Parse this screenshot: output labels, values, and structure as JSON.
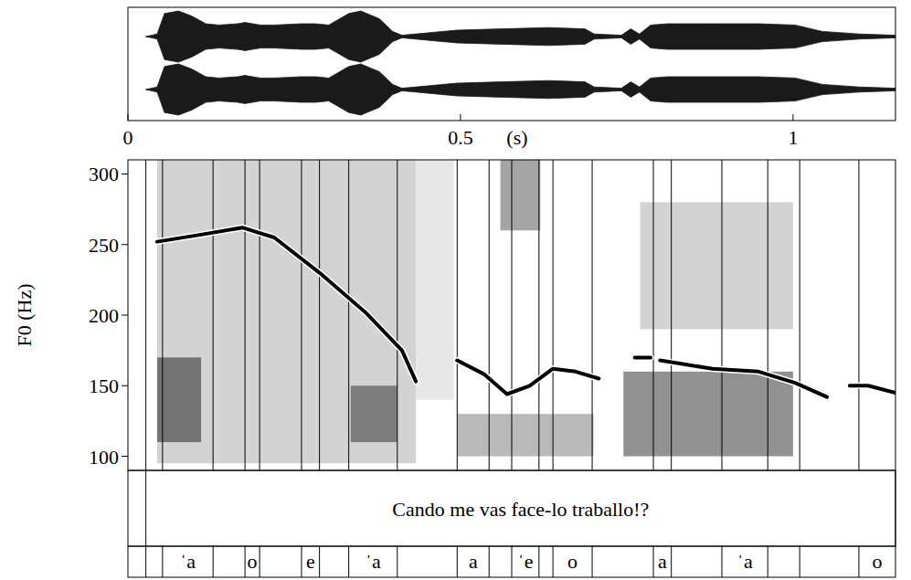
{
  "chart_data": {
    "type": "line",
    "xlabel": "(s)",
    "ylabel": "F0 (Hz)",
    "xlim": [
      0,
      1.154
    ],
    "xticks": [
      0,
      0.5,
      1
    ],
    "ylim": [
      90,
      310
    ],
    "yticks": [
      100,
      150,
      200,
      250,
      300
    ],
    "grid": false,
    "series": [
      {
        "color": "#000000",
        "x": [
          0.044,
          0.11,
          0.172,
          0.22,
          0.288,
          0.357,
          0.412,
          0.433,
          0.46,
          0.495,
          0.536,
          0.57,
          0.604,
          0.639,
          0.673,
          0.708,
          0.73,
          0.762,
          0.786,
          0.793,
          0.8,
          0.879,
          0.948,
          1.003,
          1.051,
          1.07,
          1.085,
          1.113,
          1.154
        ],
        "values": [
          252,
          257,
          262,
          255,
          230,
          202,
          175,
          153,
          null,
          168,
          158,
          144,
          150,
          162,
          160,
          155,
          null,
          170,
          170,
          null,
          168,
          162,
          160,
          152,
          142,
          null,
          150,
          150,
          145
        ]
      }
    ],
    "waveform": {
      "color": "#1a1a1a",
      "t": [
        0.027,
        0.044,
        0.055,
        0.076,
        0.096,
        0.117,
        0.137,
        0.165,
        0.176,
        0.199,
        0.22,
        0.261,
        0.282,
        0.302,
        0.332,
        0.35,
        0.378,
        0.398,
        0.412,
        0.495,
        0.563,
        0.632,
        0.687,
        0.701,
        0.742,
        0.756,
        0.769,
        0.786,
        0.811,
        0.879,
        0.948,
        1.003,
        1.044,
        1.099,
        1.154
      ],
      "amplitude": [
        0,
        0.1,
        0.9,
        1.0,
        0.8,
        0.5,
        0.45,
        0.5,
        0.55,
        0.45,
        0.45,
        0.5,
        0.5,
        0.45,
        0.9,
        1.0,
        0.7,
        0.2,
        0.05,
        0.25,
        0.3,
        0.35,
        0.3,
        0.1,
        0.05,
        0.3,
        0.1,
        0.45,
        0.5,
        0.5,
        0.5,
        0.45,
        0.2,
        0.1,
        0.05
      ]
    },
    "spectrogram": [
      {
        "start": 0.044,
        "end": 0.433,
        "low_hz": 95,
        "high_hz": 310,
        "level": 0.22
      },
      {
        "start": 0.433,
        "end": 0.49,
        "low_hz": 140,
        "high_hz": 310,
        "level": 0.12
      },
      {
        "start": 0.044,
        "end": 0.11,
        "low_hz": 110,
        "high_hz": 170,
        "level": 0.7
      },
      {
        "start": 0.335,
        "end": 0.405,
        "low_hz": 110,
        "high_hz": 150,
        "level": 0.65
      },
      {
        "start": 0.495,
        "end": 0.7,
        "low_hz": 100,
        "high_hz": 130,
        "level": 0.35
      },
      {
        "start": 0.56,
        "end": 0.62,
        "low_hz": 260,
        "high_hz": 310,
        "level": 0.45
      },
      {
        "start": 0.745,
        "end": 1.0,
        "low_hz": 100,
        "high_hz": 160,
        "level": 0.55
      },
      {
        "start": 0.77,
        "end": 1.0,
        "low_hz": 190,
        "high_hz": 280,
        "level": 0.22
      }
    ],
    "text_tier": {
      "start": 0.027,
      "end": 1.154,
      "text": "Cando me vas face-lo traballo!?"
    },
    "segment_tier": {
      "boundaries": [
        0.027,
        0.052,
        0.128,
        0.176,
        0.198,
        0.261,
        0.288,
        0.332,
        0.405,
        0.495,
        0.543,
        0.577,
        0.618,
        0.639,
        0.698,
        0.79,
        0.817,
        0.893,
        0.962,
        1.01,
        1.099
      ],
      "intervals": [
        {
          "start": 0.052,
          "end": 0.128,
          "label": "ˈa"
        },
        {
          "start": 0.176,
          "end": 0.198,
          "label": "o"
        },
        {
          "start": 0.261,
          "end": 0.288,
          "label": "e"
        },
        {
          "start": 0.332,
          "end": 0.405,
          "label": "ˈa"
        },
        {
          "start": 0.495,
          "end": 0.543,
          "label": "a"
        },
        {
          "start": 0.577,
          "end": 0.618,
          "label": "ˈe"
        },
        {
          "start": 0.639,
          "end": 0.698,
          "label": "o"
        },
        {
          "start": 0.79,
          "end": 0.817,
          "label": "a"
        },
        {
          "start": 0.893,
          "end": 0.962,
          "label": "ˈa"
        },
        {
          "start": 1.099,
          "end": 1.154,
          "label": "o"
        }
      ]
    }
  }
}
